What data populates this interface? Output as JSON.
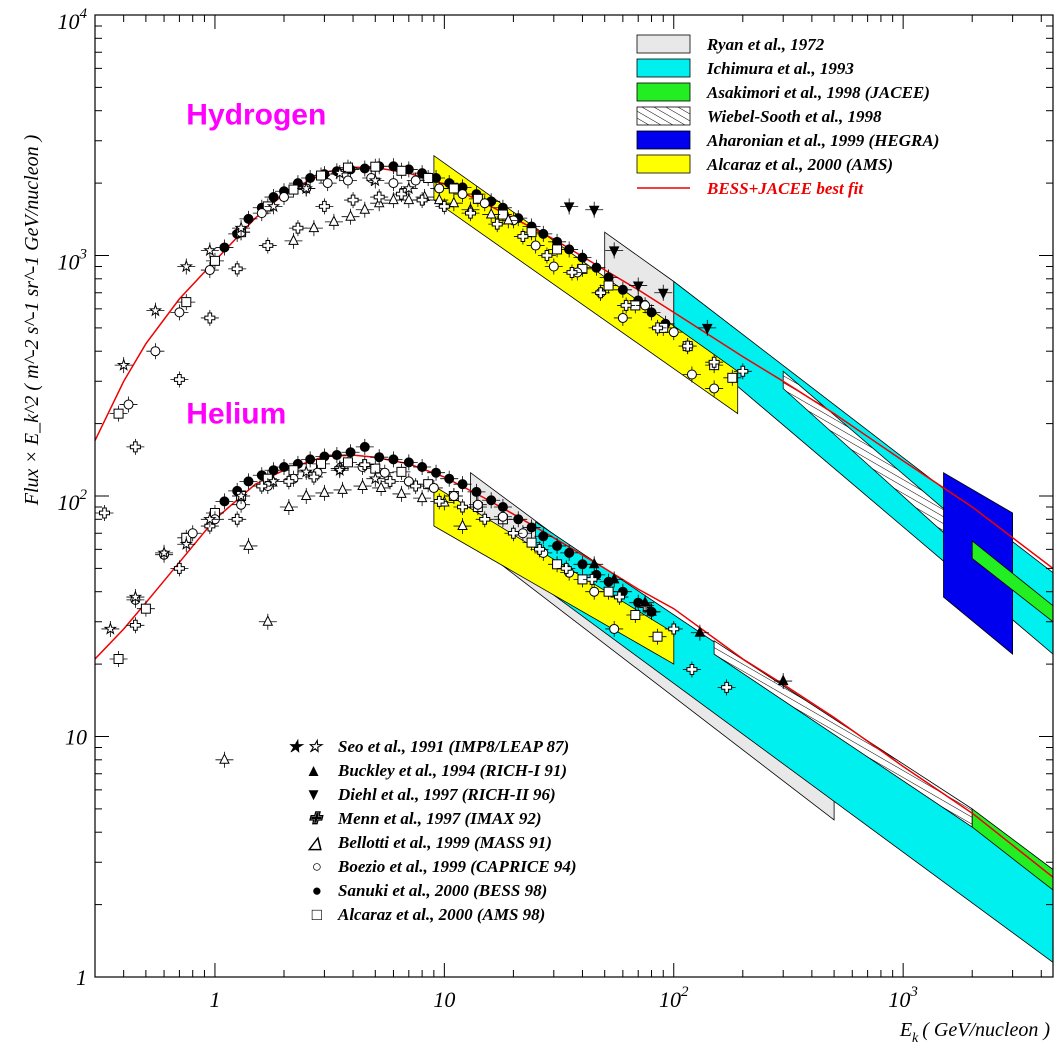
{
  "chart_data": {
    "type": "scatter",
    "xscale": "log",
    "yscale": "log",
    "xlim": [
      0.3,
      4500
    ],
    "ylim": [
      1,
      10000
    ],
    "xlabel_main": "E",
    "xlabel_sub": "k",
    "xlabel_rest": "( GeV/nucleon )",
    "ylabel": "Flux × E_k^2 ( m^-2 s^-1 sr^-1 GeV/nucleon )",
    "x_ticks": [
      {
        "value": 1,
        "base": "1",
        "exp": ""
      },
      {
        "value": 10,
        "base": "10",
        "exp": ""
      },
      {
        "value": 100,
        "base": "10",
        "exp": "2"
      },
      {
        "value": 1000,
        "base": "10",
        "exp": "3"
      }
    ],
    "y_ticks": [
      {
        "value": 1,
        "base": "1",
        "exp": ""
      },
      {
        "value": 10,
        "base": "10",
        "exp": ""
      },
      {
        "value": 100,
        "base": "10",
        "exp": "2"
      },
      {
        "value": 1000,
        "base": "10",
        "exp": "3"
      },
      {
        "value": 10000,
        "base": "10",
        "exp": "4"
      }
    ],
    "species_labels": [
      {
        "text": "Hydrogen",
        "color": "#ff00ff",
        "x": 0.75,
        "y": 3500
      },
      {
        "text": "Helium",
        "color": "#ff00ff",
        "x": 0.75,
        "y": 200
      }
    ],
    "band_legend": [
      {
        "label": "Ryan et al., 1972",
        "style": "fill",
        "color": "#e8e8e8"
      },
      {
        "label": "Ichimura et al., 1993",
        "style": "fill",
        "color": "#00f0f0"
      },
      {
        "label": "Asakimori et al., 1998 (JACEE)",
        "style": "fill",
        "color": "#22ee22"
      },
      {
        "label": "Wiebel-Sooth  et al., 1998",
        "style": "hatch",
        "color": "#000000"
      },
      {
        "label": "Aharonian et al., 1999 (HEGRA)",
        "style": "fill",
        "color": "#0000ee"
      },
      {
        "label": "Alcaraz et al., 2000 (AMS)",
        "style": "fill",
        "color": "#ffff00"
      },
      {
        "label": "BESS+JACEE best fit",
        "style": "line",
        "color": "#ee0000"
      }
    ],
    "marker_legend": [
      {
        "label": "Seo et al., 1991 (IMP8/LEAP 87)",
        "symbol": "★ ☆"
      },
      {
        "label": "Buckley et al., 1994 (RICH-I 91)",
        "symbol": "▲"
      },
      {
        "label": "Diehl et al., 1997 (RICH-II 96)",
        "symbol": "▼"
      },
      {
        "label": "Menn et al., 1997 (IMAX 92)",
        "symbol": "✙"
      },
      {
        "label": "Bellotti et al., 1999 (MASS 91)",
        "symbol": "△"
      },
      {
        "label": "Boezio et al., 1999 (CAPRICE 94)",
        "symbol": "○"
      },
      {
        "label": "Sanuki et al., 2000 (BESS 98)",
        "symbol": "●"
      },
      {
        "label": "Alcaraz et al., 2000 (AMS 98)",
        "symbol": "□"
      }
    ],
    "bands": [
      {
        "name": "Ryan H",
        "fill": "#e8e8e8",
        "pts": [
          [
            50,
            1250
          ],
          [
            100,
            780
          ],
          [
            100,
            480
          ],
          [
            50,
            750
          ]
        ]
      },
      {
        "name": "Ichimura H",
        "fill": "#00f0f0",
        "pts": [
          [
            100,
            780
          ],
          [
            4500,
            48
          ],
          [
            4500,
            22
          ],
          [
            100,
            480
          ]
        ]
      },
      {
        "name": "Wiebel-Sooth H",
        "fill": "hatch",
        "pts": [
          [
            300,
            330
          ],
          [
            2000,
            70
          ],
          [
            2000,
            55
          ],
          [
            300,
            280
          ]
        ]
      },
      {
        "name": "HEGRA H",
        "fill": "#0000ee",
        "pts": [
          [
            1500,
            125
          ],
          [
            3000,
            85
          ],
          [
            3000,
            22
          ],
          [
            1500,
            38
          ]
        ]
      },
      {
        "name": "JACEE H",
        "fill": "#22ee22",
        "pts": [
          [
            2000,
            65
          ],
          [
            4500,
            35
          ],
          [
            4500,
            30
          ],
          [
            2000,
            55
          ]
        ]
      },
      {
        "name": "AMS H",
        "fill": "#ffff00",
        "pts": [
          [
            9,
            2600
          ],
          [
            190,
            330
          ],
          [
            190,
            220
          ],
          [
            9,
            1700
          ]
        ]
      },
      {
        "name": "Ryan He",
        "fill": "#e8e8e8",
        "pts": [
          [
            13,
            125
          ],
          [
            500,
            9.5
          ],
          [
            500,
            4.5
          ],
          [
            13,
            65
          ]
        ]
      },
      {
        "name": "Ichimura He",
        "fill": "#00f0f0",
        "pts": [
          [
            25,
            78
          ],
          [
            4500,
            2.8
          ],
          [
            4500,
            1.15
          ],
          [
            25,
            44
          ]
        ]
      },
      {
        "name": "Wiebel-Sooth He",
        "fill": "hatch",
        "pts": [
          [
            150,
            25
          ],
          [
            2000,
            5
          ],
          [
            2000,
            4.2
          ],
          [
            150,
            22
          ]
        ]
      },
      {
        "name": "JACEE He",
        "fill": "#22ee22",
        "pts": [
          [
            2000,
            5
          ],
          [
            4500,
            2.8
          ],
          [
            4500,
            2.3
          ],
          [
            2000,
            4.2
          ]
        ]
      },
      {
        "name": "AMS He",
        "fill": "#ffff00",
        "pts": [
          [
            9,
            110
          ],
          [
            100,
            27
          ],
          [
            100,
            20
          ],
          [
            9,
            75
          ]
        ]
      }
    ],
    "series": [
      {
        "name": "BESS+JACEE best fit (H)",
        "kind": "line",
        "color": "#ee0000",
        "x": [
          0.3,
          0.4,
          0.5,
          0.7,
          1,
          1.5,
          2,
          3,
          4,
          5,
          7,
          10,
          15,
          20,
          30,
          50,
          70,
          100,
          200,
          300,
          500,
          1000,
          2000,
          4500
        ],
        "y": [
          170,
          300,
          430,
          660,
          950,
          1430,
          1800,
          2220,
          2330,
          2320,
          2200,
          1980,
          1650,
          1430,
          1170,
          870,
          720,
          580,
          380,
          300,
          220,
          140,
          90,
          50
        ]
      },
      {
        "name": "BESS+JACEE best fit (He)",
        "kind": "line",
        "color": "#ee0000",
        "x": [
          0.3,
          0.4,
          0.5,
          0.7,
          1,
          1.5,
          2,
          3,
          4,
          5,
          7,
          10,
          15,
          20,
          30,
          50,
          70,
          100,
          200,
          300,
          500,
          1000,
          2000,
          4500
        ],
        "y": [
          21,
          28,
          36,
          53,
          80,
          112,
          128,
          146,
          148,
          145,
          136,
          120,
          98,
          84,
          67,
          50,
          41,
          34,
          21,
          16.5,
          12,
          7.5,
          4.8,
          2.6
        ]
      },
      {
        "name": "BESS 98 H",
        "marker": "filled-circle",
        "x": [
          1.1,
          1.25,
          1.4,
          1.6,
          1.8,
          2.0,
          2.3,
          2.6,
          3.0,
          3.4,
          3.9,
          4.5,
          5.2,
          6,
          7,
          8,
          9.2,
          10.5,
          12,
          13.8,
          16,
          18,
          21,
          24,
          27,
          31,
          35,
          40,
          46,
          52,
          60,
          70,
          80,
          92
        ],
        "y": [
          1080,
          1230,
          1420,
          1580,
          1750,
          1850,
          2000,
          2100,
          2180,
          2240,
          2280,
          2300,
          2350,
          2350,
          2280,
          2200,
          2100,
          2000,
          1920,
          1800,
          1680,
          1580,
          1430,
          1320,
          1230,
          1140,
          1060,
          980,
          890,
          810,
          720,
          650,
          580,
          520
        ]
      },
      {
        "name": "BESS 98 He",
        "marker": "filled-circle",
        "x": [
          1.1,
          1.25,
          1.4,
          1.6,
          1.8,
          2.0,
          2.3,
          2.6,
          3.0,
          3.4,
          3.9,
          4.5,
          5.2,
          6,
          7,
          8,
          9.2,
          10.5,
          12,
          13.8,
          16,
          18,
          21,
          24,
          27,
          31,
          35,
          40,
          46,
          52,
          60,
          70,
          80
        ],
        "y": [
          95,
          105,
          115,
          122,
          128,
          132,
          136,
          142,
          146,
          148,
          152,
          160,
          145,
          142,
          138,
          132,
          125,
          118,
          112,
          104,
          96,
          90,
          80,
          74,
          68,
          62,
          58,
          52,
          47,
          44,
          40,
          36,
          33
        ]
      },
      {
        "name": "AMS 98 H",
        "marker": "open-square",
        "x": [
          0.38,
          0.75,
          1.0,
          1.3,
          1.7,
          2.2,
          2.9,
          3.8,
          5,
          6.5,
          8.5,
          11,
          14,
          18,
          24,
          31,
          40,
          52,
          68,
          90,
          115,
          150,
          180
        ],
        "y": [
          220,
          640,
          950,
          1250,
          1600,
          1880,
          2150,
          2320,
          2340,
          2250,
          2100,
          1900,
          1720,
          1480,
          1250,
          1060,
          880,
          750,
          620,
          500,
          420,
          350,
          310
        ]
      },
      {
        "name": "AMS 98 He",
        "marker": "open-square",
        "x": [
          0.38,
          0.5,
          0.75,
          1.0,
          1.3,
          1.7,
          2.2,
          2.9,
          3.8,
          5,
          6.5,
          8.5,
          11,
          14,
          18,
          24,
          31,
          40,
          52,
          68,
          85
        ],
        "y": [
          21,
          34,
          67,
          85,
          100,
          118,
          128,
          136,
          138,
          130,
          126,
          112,
          100,
          90,
          80,
          64,
          52,
          45,
          40,
          32,
          26
        ]
      },
      {
        "name": "CAPRICE 94 H",
        "marker": "open-circle",
        "x": [
          0.42,
          0.55,
          0.7,
          0.95,
          1.3,
          1.6,
          2.0,
          2.5,
          3.1,
          3.8,
          4.8,
          6,
          7.5,
          9.5,
          12,
          15,
          20,
          25,
          30,
          38,
          48,
          60,
          75,
          100,
          120,
          150
        ],
        "y": [
          240,
          400,
          580,
          870,
          1250,
          1500,
          1750,
          1900,
          2000,
          2050,
          2100,
          2000,
          2050,
          1900,
          1800,
          1650,
          1400,
          1100,
          900,
          850,
          700,
          550,
          620,
          480,
          320,
          280
        ]
      },
      {
        "name": "CAPRICE 94 He",
        "marker": "open-circle",
        "x": [
          0.45,
          0.6,
          0.8,
          1.0,
          1.3,
          1.7,
          2.2,
          2.8,
          3.5,
          4.4,
          5.5,
          7,
          9,
          11,
          14,
          18,
          22,
          27,
          35,
          45,
          55
        ],
        "y": [
          37,
          57,
          70,
          80,
          92,
          110,
          118,
          125,
          130,
          132,
          125,
          115,
          108,
          100,
          92,
          82,
          70,
          58,
          48,
          40,
          28
        ]
      },
      {
        "name": "MASS 91 H",
        "marker": "open-triangle-up",
        "x": [
          2.2,
          2.7,
          3.3,
          3.9,
          4.5,
          5.2,
          6,
          7,
          8.2,
          9.5,
          11,
          13,
          16,
          19
        ],
        "y": [
          1150,
          1300,
          1380,
          1450,
          1550,
          1650,
          1700,
          1700,
          1750,
          1700,
          1650,
          1550,
          1480,
          1400
        ]
      },
      {
        "name": "MASS 91 He",
        "marker": "open-triangle-up",
        "x": [
          1.1,
          1.4,
          1.7,
          2.1,
          2.5,
          3,
          3.6,
          4.4,
          5.3,
          6.5,
          8,
          10,
          12
        ],
        "y": [
          8,
          62,
          30,
          90,
          100,
          103,
          106,
          110,
          108,
          102,
          98,
          94,
          75
        ]
      },
      {
        "name": "IMAX 92 H",
        "marker": "open-cross",
        "x": [
          0.45,
          0.7,
          0.95,
          1.25,
          1.7,
          2.3,
          3.0,
          4.0,
          5.2,
          6.5,
          8,
          10,
          13,
          17,
          22,
          28,
          36,
          48,
          62,
          85,
          115,
          150,
          200
        ],
        "y": [
          160,
          305,
          550,
          880,
          1100,
          1300,
          1600,
          1700,
          1750,
          1800,
          1700,
          1600,
          1500,
          1350,
          1200,
          1000,
          850,
          700,
          620,
          500,
          420,
          360,
          330
        ]
      },
      {
        "name": "IMAX 92 He",
        "marker": "open-cross",
        "x": [
          0.33,
          0.45,
          0.7,
          0.95,
          1.25,
          1.6,
          2.1,
          2.7,
          3.5,
          4.5,
          5.8,
          7.5,
          9.5,
          12,
          15,
          20,
          26,
          34,
          44,
          58,
          75,
          100,
          120,
          170
        ],
        "y": [
          85,
          29,
          50,
          75,
          80,
          110,
          115,
          120,
          130,
          135,
          115,
          110,
          95,
          90,
          80,
          70,
          60,
          50,
          45,
          38,
          35,
          28,
          19,
          16
        ]
      },
      {
        "name": "Seo 1991 H",
        "marker": "star",
        "x": [
          0.4,
          0.55,
          0.75,
          0.95,
          1.3,
          1.8,
          2.5,
          3.5,
          5,
          7
        ],
        "y": [
          350,
          590,
          900,
          1050,
          1300,
          1600,
          1900,
          2200,
          2050,
          1900
        ]
      },
      {
        "name": "Seo 1991 He",
        "marker": "star",
        "x": [
          0.35,
          0.45,
          0.6,
          0.75,
          0.95,
          1.3,
          1.8,
          2.5,
          3.5,
          5
        ],
        "y": [
          28,
          38,
          58,
          63,
          80,
          100,
          115,
          126,
          128,
          118
        ]
      },
      {
        "name": "RICH-II 96 H",
        "marker": "filled-triangle-down",
        "x": [
          35,
          45,
          55,
          70,
          90,
          140
        ],
        "y": [
          1600,
          1550,
          1050,
          750,
          700,
          500
        ]
      },
      {
        "name": "RICH-I 91 He",
        "marker": "filled-triangle-up",
        "x": [
          45,
          55,
          75,
          80,
          130,
          300
        ],
        "y": [
          52,
          45,
          36,
          33,
          27,
          17
        ]
      }
    ]
  }
}
